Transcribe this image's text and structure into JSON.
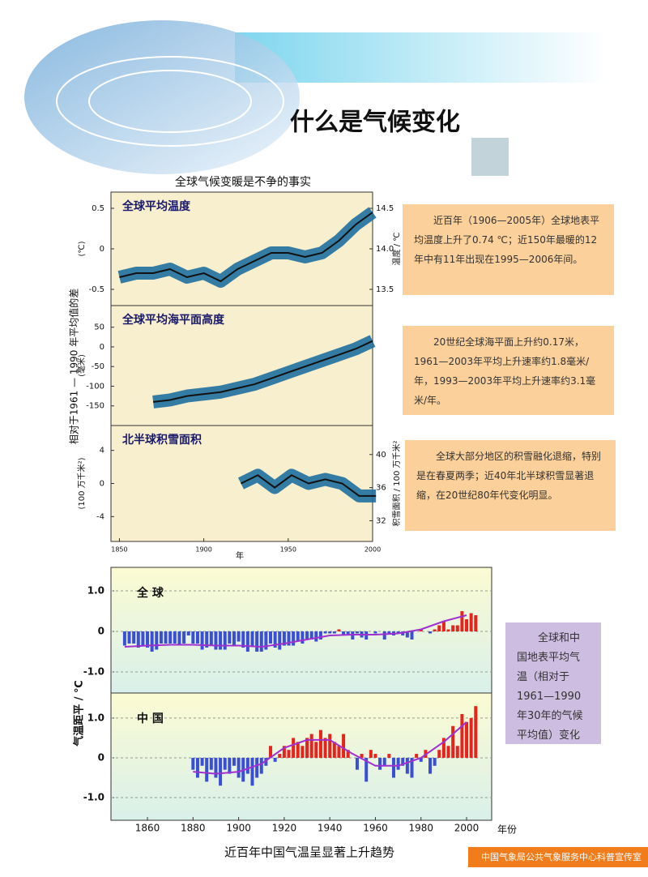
{
  "header": {
    "title": "什么是气候变化"
  },
  "figure_top": {
    "title": "全球气候变暖是不争的事实",
    "ylabel": "相对于1961 — 1990 年平均值的差",
    "xlabel": "年",
    "xlim": [
      1845,
      2000
    ],
    "xticks": [
      1850,
      1900,
      1950,
      2000
    ]
  },
  "figure_bottom": {
    "caption": "近百年中国气温呈显著上升趋势",
    "ylabel": "气温距平 / ℃",
    "xlabel": "年份",
    "xlim": [
      1844,
      2011
    ],
    "xticks": [
      1860,
      1880,
      1900,
      1920,
      1940,
      1960,
      1980,
      2000
    ]
  },
  "notes": [
    "近百年（1906—2005年）全球地表平均温度上升了0.74 ℃；近150年最暖的12年中有11年出现在1995—2006年间。",
    "20世纪全球海平面上升约0.17米，1961—2003年平均上升速率约1.8毫米/年，1993—2003年平均上升速率约3.1毫米/年。",
    "全球大部分地区的积雪融化退缩，特别是在春夏两季；近40年北半球积雪显著退缩，在20世纪80年代变化明显。",
    "全球和中国地表平均气温（相对于1961—1990年30年的气候平均值）变化"
  ],
  "footer": "中国气象局公共气象服务中心科普宣传室",
  "chart_data": [
    {
      "type": "line",
      "title": "全球平均温度",
      "ylabel": "(℃)",
      "y2label": "温度 / ℃",
      "color": "#111111",
      "band_color": "#1f6f9f",
      "x": [
        1850,
        1860,
        1870,
        1880,
        1890,
        1900,
        1910,
        1920,
        1930,
        1940,
        1950,
        1960,
        1970,
        1980,
        1990,
        2000
      ],
      "values": [
        -0.35,
        -0.3,
        -0.3,
        -0.25,
        -0.35,
        -0.3,
        -0.4,
        -0.25,
        -0.15,
        -0.05,
        -0.05,
        -0.1,
        -0.05,
        0.1,
        0.3,
        0.45
      ],
      "ylim": [
        -0.7,
        0.7
      ],
      "yticks": [
        0.5,
        0,
        -0.5
      ],
      "y2lim": [
        13.3,
        14.7
      ],
      "y2ticks": [
        14.5,
        {
          "value": 14.0,
          "label": "14.0"
        },
        13.5
      ]
    },
    {
      "type": "line",
      "title": "全球平均海平面高度",
      "ylabel": "(毫米)",
      "color": "#111111",
      "band_color": "#1f6f9f",
      "x": [
        1870,
        1880,
        1890,
        1900,
        1910,
        1920,
        1930,
        1940,
        1950,
        1960,
        1970,
        1980,
        1990,
        2000
      ],
      "values": [
        -140,
        -135,
        -125,
        -120,
        -115,
        -105,
        -95,
        -80,
        -65,
        -50,
        -35,
        -20,
        -5,
        15
      ],
      "ylim": [
        -200,
        105
      ],
      "yticks": [
        50,
        0,
        -50,
        -100,
        -150
      ]
    },
    {
      "type": "line",
      "title": "北半球积雪面积",
      "ylabel": "(100 万千米²)",
      "y2label": "积雪面积 / 100 万千米²",
      "color": "#111111",
      "band_color": "#1f6f9f",
      "x": [
        1922,
        1932,
        1942,
        1952,
        1962,
        1972,
        1982,
        1992,
        2002
      ],
      "values": [
        0,
        1,
        -0.5,
        1,
        0,
        0.5,
        0,
        -1.5,
        -1.5
      ],
      "ylim": [
        -7,
        7
      ],
      "yticks": [
        4,
        0,
        -4
      ],
      "y2lim": [
        29.5,
        43.5
      ],
      "y2ticks": [
        40,
        36,
        32
      ]
    },
    {
      "type": "bar",
      "title": "全 球",
      "pos_color": "#e8231c",
      "neg_color": "#3a4fd6",
      "grid": true,
      "x": [
        1850,
        1852,
        1854,
        1856,
        1858,
        1860,
        1862,
        1864,
        1866,
        1868,
        1870,
        1872,
        1874,
        1876,
        1878,
        1880,
        1882,
        1884,
        1886,
        1888,
        1890,
        1892,
        1894,
        1896,
        1898,
        1900,
        1902,
        1904,
        1906,
        1908,
        1910,
        1912,
        1914,
        1916,
        1918,
        1920,
        1922,
        1924,
        1926,
        1928,
        1930,
        1932,
        1934,
        1936,
        1938,
        1940,
        1942,
        1944,
        1946,
        1948,
        1950,
        1952,
        1954,
        1956,
        1958,
        1960,
        1962,
        1964,
        1966,
        1968,
        1970,
        1972,
        1974,
        1976,
        1978,
        1980,
        1982,
        1984,
        1986,
        1988,
        1990,
        1992,
        1994,
        1996,
        1998,
        2000,
        2002,
        2004
      ],
      "values": [
        -0.35,
        -0.3,
        -0.3,
        -0.4,
        -0.35,
        -0.4,
        -0.5,
        -0.45,
        -0.3,
        -0.3,
        -0.3,
        -0.3,
        -0.35,
        -0.3,
        -0.1,
        -0.3,
        -0.3,
        -0.45,
        -0.4,
        -0.35,
        -0.45,
        -0.45,
        -0.45,
        -0.3,
        -0.35,
        -0.25,
        -0.4,
        -0.5,
        -0.35,
        -0.5,
        -0.5,
        -0.45,
        -0.3,
        -0.4,
        -0.45,
        -0.35,
        -0.35,
        -0.35,
        -0.25,
        -0.3,
        -0.2,
        -0.2,
        -0.25,
        -0.2,
        -0.05,
        -0.05,
        -0.05,
        0.05,
        -0.1,
        -0.1,
        -0.2,
        -0.05,
        -0.15,
        -0.2,
        0,
        -0.05,
        0,
        -0.2,
        -0.05,
        -0.1,
        -0.05,
        -0.1,
        -0.15,
        -0.2,
        0,
        0.05,
        0,
        -0.05,
        0.05,
        0.15,
        0.25,
        0.05,
        0.15,
        0.15,
        0.5,
        0.3,
        0.45,
        0.4
      ],
      "trend": {
        "color": "#a030d0",
        "x": [
          1850,
          1860,
          1870,
          1880,
          1890,
          1900,
          1910,
          1920,
          1930,
          1940,
          1950,
          1960,
          1970,
          1980,
          1990,
          2000
        ],
        "values": [
          -0.38,
          -0.35,
          -0.33,
          -0.33,
          -0.35,
          -0.35,
          -0.38,
          -0.3,
          -0.2,
          -0.1,
          -0.08,
          -0.08,
          -0.05,
          0.05,
          0.25,
          0.4
        ]
      },
      "ylim": [
        -1.52,
        1.58
      ],
      "yticks": [
        {
          "value": 1,
          "label": "1.0"
        },
        0,
        {
          "value": -1,
          "label": "-1.0"
        }
      ]
    },
    {
      "type": "bar",
      "title": "中 国",
      "pos_color": "#e8231c",
      "neg_color": "#3a4fd6",
      "grid": true,
      "x": [
        1880,
        1882,
        1884,
        1886,
        1888,
        1890,
        1892,
        1894,
        1896,
        1898,
        1900,
        1902,
        1904,
        1906,
        1908,
        1910,
        1912,
        1914,
        1916,
        1918,
        1920,
        1922,
        1924,
        1926,
        1928,
        1930,
        1932,
        1934,
        1936,
        1938,
        1940,
        1942,
        1944,
        1946,
        1948,
        1950,
        1952,
        1954,
        1956,
        1958,
        1960,
        1962,
        1964,
        1966,
        1968,
        1970,
        1972,
        1974,
        1976,
        1978,
        1980,
        1982,
        1984,
        1986,
        1988,
        1990,
        1992,
        1994,
        1996,
        1998,
        2000,
        2002,
        2004
      ],
      "values": [
        -0.3,
        -0.5,
        -0.2,
        -0.6,
        -0.3,
        -0.5,
        -0.7,
        -0.3,
        -0.4,
        -0.2,
        -0.5,
        -0.6,
        -0.4,
        -0.7,
        -0.5,
        -0.4,
        -0.2,
        0.3,
        -0.1,
        0.1,
        0.3,
        0.2,
        0.5,
        0.4,
        0.3,
        0.5,
        0.6,
        0.4,
        0.7,
        0.5,
        0.6,
        0.4,
        0.3,
        0.6,
        0.2,
        0,
        -0.3,
        0.1,
        -0.6,
        0.2,
        0.1,
        -0.3,
        -0.2,
        0.1,
        -0.5,
        -0.3,
        -0.2,
        -0.4,
        -0.5,
        0.1,
        -0.1,
        0.2,
        -0.4,
        -0.2,
        0.2,
        0.5,
        0.3,
        0.8,
        0.3,
        1.1,
        0.9,
        1.0,
        1.3
      ],
      "trend": {
        "color": "#a030d0",
        "x": [
          1880,
          1890,
          1900,
          1910,
          1920,
          1930,
          1940,
          1950,
          1960,
          1970,
          1980,
          1990,
          2000
        ],
        "values": [
          -0.35,
          -0.4,
          -0.35,
          -0.15,
          0.25,
          0.45,
          0.45,
          0.1,
          -0.2,
          -0.2,
          0,
          0.4,
          0.9
        ]
      },
      "ylim": [
        -1.57,
        1.63
      ],
      "yticks": [
        {
          "value": 1,
          "label": "1.0"
        },
        0,
        {
          "value": -1,
          "label": "-1.0"
        }
      ]
    }
  ]
}
